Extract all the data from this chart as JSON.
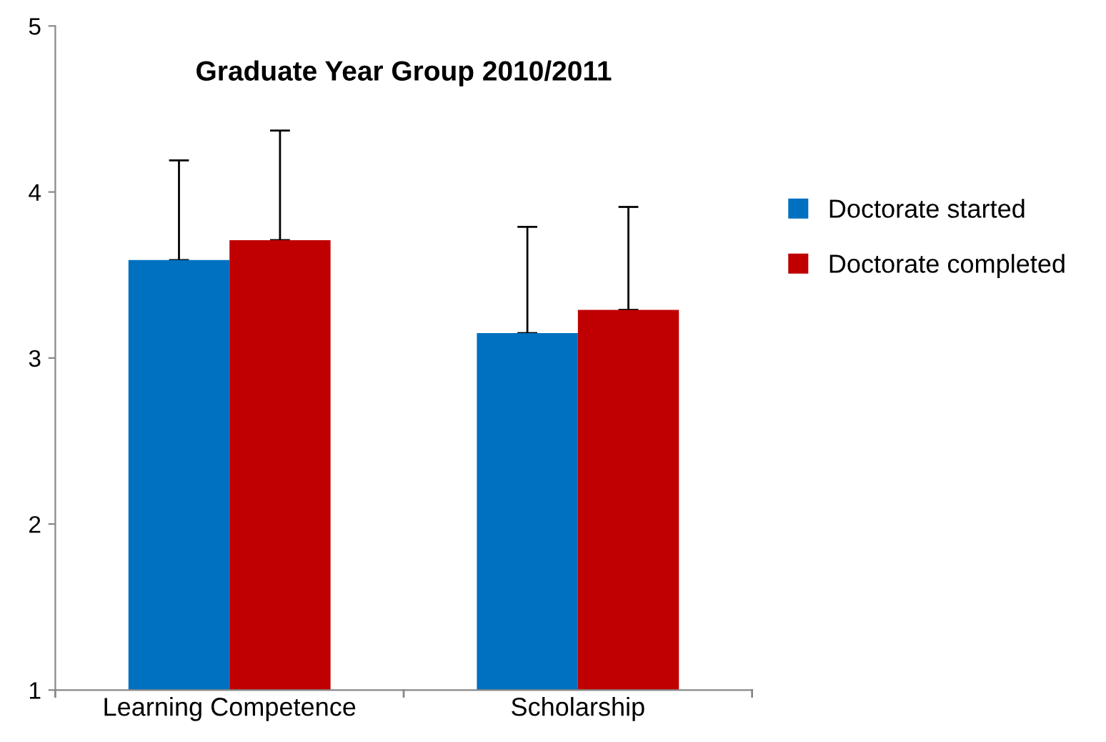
{
  "chart_data": {
    "type": "bar",
    "title": "Graduate Year Group 2010/2011",
    "categories": [
      "Learning Competence",
      "Scholarship"
    ],
    "series": [
      {
        "name": "Doctorate started",
        "color": "#0070c0",
        "values": [
          3.59,
          3.15
        ],
        "errors": [
          [
            3.59,
            4.19
          ],
          [
            3.15,
            3.79
          ]
        ]
      },
      {
        "name": "Doctorate completed",
        "color": "#c00000",
        "values": [
          3.71,
          3.29
        ],
        "errors": [
          [
            3.71,
            4.37
          ],
          [
            3.29,
            3.91
          ]
        ]
      }
    ],
    "ylim": [
      1,
      5
    ],
    "yticks": [
      1,
      2,
      3,
      4,
      5
    ],
    "grid": false,
    "legend": "right"
  }
}
